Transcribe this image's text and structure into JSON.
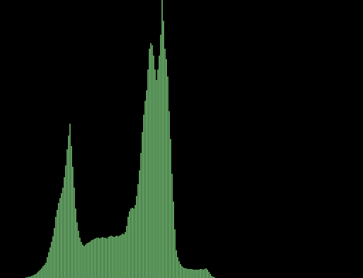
{
  "chart_data": {
    "type": "histogram",
    "color": "#7fd07f",
    "background": "#000000",
    "xlim": [
      0,
      256
    ],
    "ylim": [
      0,
      400
    ],
    "bins": [
      0,
      1,
      2,
      3,
      4,
      5,
      6,
      7,
      8,
      9,
      10,
      11,
      12,
      13,
      14,
      15,
      16,
      17,
      18,
      19,
      20,
      21,
      22,
      23,
      24,
      25,
      26,
      27,
      28,
      29,
      30,
      31,
      32,
      33,
      34,
      35,
      36,
      37,
      38,
      39,
      40,
      41,
      42,
      43,
      44,
      45,
      46,
      47,
      48,
      49,
      50,
      51,
      52,
      53,
      54,
      55,
      56,
      57,
      58,
      59,
      60,
      61,
      62,
      63,
      64,
      65,
      66,
      67,
      68,
      69,
      70,
      71,
      72,
      73,
      74,
      75,
      76,
      77,
      78,
      79,
      80,
      81,
      82,
      83,
      84,
      85,
      86,
      87,
      88,
      89,
      90,
      91,
      92,
      93,
      94,
      95,
      96,
      97,
      98,
      99,
      100,
      101,
      102,
      103,
      104,
      105,
      106,
      107,
      108,
      109,
      110,
      111,
      112,
      113,
      114,
      115,
      116,
      117,
      118,
      119,
      120,
      121,
      122,
      123,
      124,
      125,
      126,
      127,
      128,
      129,
      130,
      131,
      132,
      133,
      134,
      135,
      136,
      137,
      138,
      139,
      140,
      141,
      142,
      143,
      144,
      145,
      146,
      147,
      148,
      149,
      150,
      151,
      152,
      153,
      154,
      155,
      156,
      157,
      158,
      159,
      160,
      161,
      162,
      163,
      164,
      165,
      166,
      167,
      168,
      169,
      170,
      171,
      172,
      173,
      174,
      175,
      176,
      177,
      178,
      179,
      180,
      181,
      182,
      183,
      184,
      185,
      186,
      187,
      188,
      189,
      190,
      191,
      192,
      193,
      194,
      195,
      196,
      197,
      198,
      199,
      200,
      201,
      202,
      203,
      204,
      205,
      206,
      207,
      208,
      209,
      210,
      211,
      212,
      213,
      214,
      215,
      216,
      217,
      218,
      219,
      220,
      221,
      222,
      223,
      224,
      225,
      226,
      227,
      228,
      229,
      230,
      231,
      232,
      233,
      234,
      235,
      236,
      237,
      238,
      239,
      240,
      241,
      242,
      243,
      244,
      245,
      246,
      247,
      248,
      249,
      250,
      251,
      252,
      253,
      254,
      255,
      256
    ],
    "values": [
      0,
      0,
      0,
      0,
      0,
      0,
      0,
      0,
      0,
      0,
      0,
      0,
      0,
      0,
      0,
      0,
      0,
      0,
      1,
      1,
      2,
      2,
      3,
      4,
      5,
      6,
      8,
      10,
      12,
      14,
      17,
      19,
      22,
      30,
      37,
      44,
      52,
      60,
      72,
      88,
      98,
      108,
      115,
      122,
      130,
      145,
      162,
      185,
      205,
      222,
      190,
      160,
      130,
      100,
      80,
      68,
      58,
      52,
      48,
      46,
      48,
      50,
      51,
      52,
      54,
      55,
      56,
      57,
      58,
      58,
      57,
      58,
      59,
      58,
      58,
      57,
      59,
      60,
      61,
      60,
      59,
      60,
      61,
      60,
      61,
      62,
      64,
      63,
      66,
      75,
      88,
      96,
      100,
      101,
      100,
      105,
      118,
      135,
      155,
      180,
      210,
      235,
      255,
      270,
      300,
      330,
      338,
      335,
      320,
      300,
      285,
      300,
      320,
      350,
      400,
      370,
      330,
      315,
      290,
      240,
      200,
      150,
      110,
      70,
      40,
      30,
      24,
      20,
      17,
      15,
      14,
      14,
      13,
      13,
      13,
      13,
      12,
      12,
      12,
      12,
      12,
      13,
      13,
      12,
      13,
      14,
      12,
      9,
      6,
      3,
      2,
      1,
      0,
      0,
      0,
      0,
      0,
      0,
      0,
      0,
      0,
      0,
      0,
      0,
      0,
      0,
      0,
      0,
      0,
      0,
      0,
      0,
      0,
      0,
      0,
      0,
      0,
      0,
      0,
      0,
      0,
      0,
      0,
      0,
      0,
      0,
      0,
      0,
      0,
      0,
      0,
      0,
      0,
      0,
      0,
      0,
      0,
      0,
      0,
      0,
      0,
      0,
      0,
      0,
      0,
      0,
      0,
      0,
      0,
      0,
      0,
      0,
      0,
      0,
      0,
      0,
      0,
      0,
      0,
      0,
      0,
      0,
      0,
      0,
      0,
      0,
      0,
      0,
      0,
      0,
      0,
      0,
      0,
      0,
      0,
      0,
      0,
      0,
      0,
      0,
      0,
      0,
      0,
      0,
      0,
      0,
      0,
      0,
      0,
      0,
      0,
      0,
      0,
      0,
      0,
      0
    ]
  }
}
